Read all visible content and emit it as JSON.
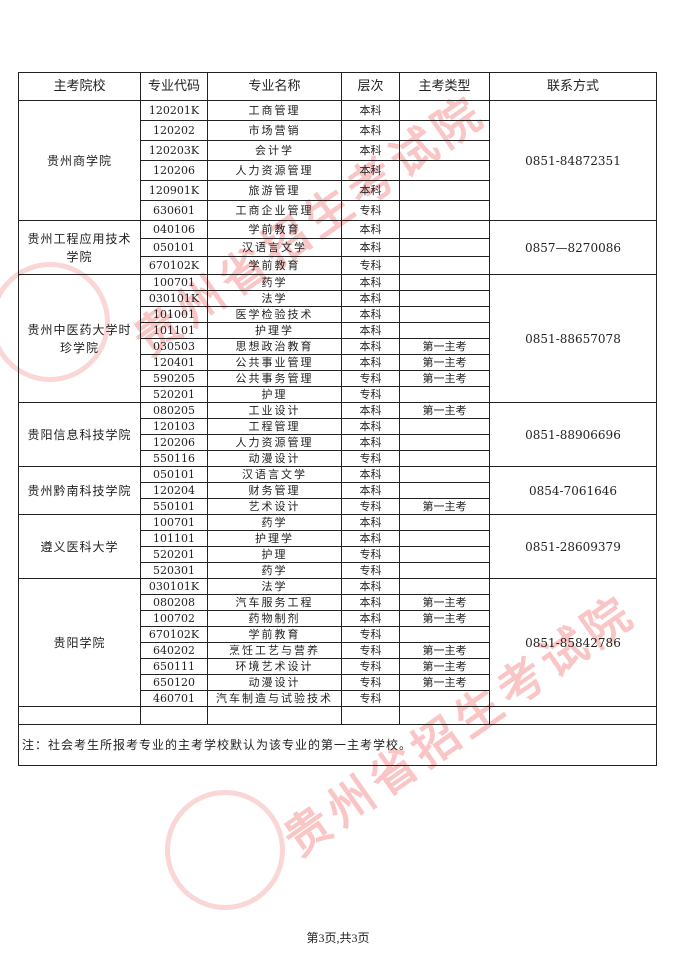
{
  "headers": [
    "主考院校",
    "专业代码",
    "专业名称",
    "层次",
    "主考类型",
    "联系方式"
  ],
  "groups": [
    {
      "school": "贵州商学院",
      "contact": "0851-84872351",
      "rows": [
        [
          "120201K",
          "工商管理",
          "本科",
          ""
        ],
        [
          "120202",
          "市场营销",
          "本科",
          ""
        ],
        [
          "120203K",
          "会计学",
          "本科",
          ""
        ],
        [
          "120206",
          "人力资源管理",
          "本科",
          ""
        ],
        [
          "120901K",
          "旅游管理",
          "本科",
          ""
        ],
        [
          "630601",
          "工商企业管理",
          "专科",
          ""
        ]
      ]
    },
    {
      "school": "贵州工程应用技术学院",
      "contact": "0857—8270086",
      "rows": [
        [
          "040106",
          "学前教育",
          "本科",
          ""
        ],
        [
          "050101",
          "汉语言文学",
          "本科",
          ""
        ],
        [
          "670102K",
          "学前教育",
          "专科",
          ""
        ]
      ]
    },
    {
      "school": "贵州中医药大学时珍学院",
      "contact": "0851-88657078",
      "rows": [
        [
          "100701",
          "药学",
          "本科",
          ""
        ],
        [
          "030101K",
          "法学",
          "本科",
          ""
        ],
        [
          "101001",
          "医学检验技术",
          "本科",
          ""
        ],
        [
          "101101",
          "护理学",
          "本科",
          ""
        ],
        [
          "030503",
          "思想政治教育",
          "本科",
          "第一主考"
        ],
        [
          "120401",
          "公共事业管理",
          "本科",
          "第一主考"
        ],
        [
          "590205",
          "公共事务管理",
          "专科",
          "第一主考"
        ],
        [
          "520201",
          "护理",
          "专科",
          ""
        ]
      ]
    },
    {
      "school": "贵阳信息科技学院",
      "contact": "0851-88906696",
      "rows": [
        [
          "080205",
          "工业设计",
          "本科",
          "第一主考"
        ],
        [
          "120103",
          "工程管理",
          "本科",
          ""
        ],
        [
          "120206",
          "人力资源管理",
          "本科",
          ""
        ],
        [
          "550116",
          "动漫设计",
          "专科",
          ""
        ]
      ]
    },
    {
      "school": "贵州黔南科技学院",
      "contact": "0854-7061646",
      "rows": [
        [
          "050101",
          "汉语言文学",
          "本科",
          ""
        ],
        [
          "120204",
          "财务管理",
          "本科",
          ""
        ],
        [
          "550101",
          "艺术设计",
          "专科",
          "第一主考"
        ]
      ]
    },
    {
      "school": "遵义医科大学",
      "contact": "0851-28609379",
      "rows": [
        [
          "100701",
          "药学",
          "本科",
          ""
        ],
        [
          "101101",
          "护理学",
          "本科",
          ""
        ],
        [
          "520201",
          "护理",
          "专科",
          ""
        ],
        [
          "520301",
          "药学",
          "专科",
          ""
        ]
      ]
    },
    {
      "school": "贵阳学院",
      "contact": "0851-85842786",
      "rows": [
        [
          "030101K",
          "法学",
          "本科",
          ""
        ],
        [
          "080208",
          "汽车服务工程",
          "本科",
          "第一主考"
        ],
        [
          "100702",
          "药物制剂",
          "本科",
          "第一主考"
        ],
        [
          "670102K",
          "学前教育",
          "专科",
          ""
        ],
        [
          "640202",
          "烹饪工艺与营养",
          "专科",
          "第一主考"
        ],
        [
          "650111",
          "环境艺术设计",
          "专科",
          "第一主考"
        ],
        [
          "650120",
          "动漫设计",
          "专科",
          "第一主考"
        ],
        [
          "460701",
          "汽车制造与试验技术",
          "专科",
          ""
        ]
      ]
    }
  ],
  "note": "注：社会考生所报考专业的主考学校默认为该专业的第一主考学校。",
  "footer": "第3页,共3页",
  "watermark": "贵州省招生考试院",
  "watermark_color": "#e33333"
}
